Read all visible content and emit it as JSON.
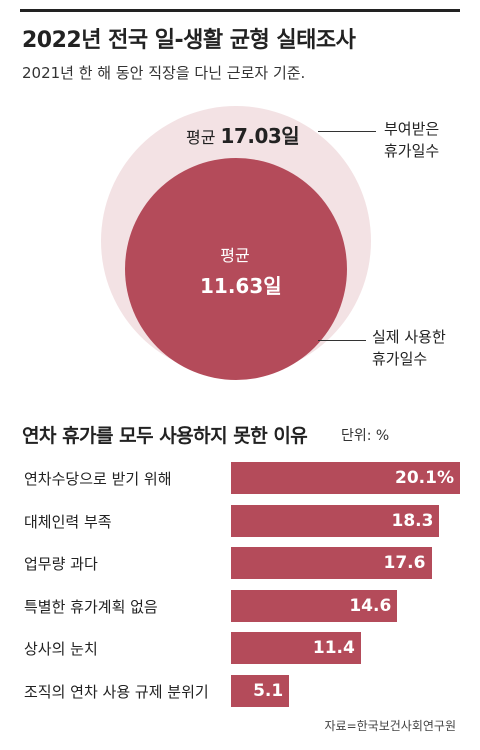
{
  "header": {
    "title": "2022년 전국 일-생활 균형 실태조사",
    "subtitle": "2021년 한 해 동안 직장을 다닌 근로자 기준."
  },
  "circle_chart": {
    "outer": {
      "label": "평균",
      "value": 17.03,
      "value_text": "17.03일",
      "annotation": [
        "부여받은",
        "휴가일수"
      ],
      "color": "#f3e2e4"
    },
    "inner": {
      "label": "평균",
      "value": 11.63,
      "value_text": "11.63일",
      "annotation": [
        "실제 사용한",
        "휴가일수"
      ],
      "color": "#b44b5a"
    }
  },
  "bar_section": {
    "title": "연차 휴가를 모두 사용하지 못한 이유",
    "unit": "단위: %"
  },
  "chart_data": {
    "type": "bar",
    "orientation": "horizontal",
    "title": "연차 휴가를 모두 사용하지 못한 이유",
    "unit": "%",
    "categories": [
      "연차수당으로 받기 위해",
      "대체인력 부족",
      "업무량 과다",
      "특별한 휴가계획 없음",
      "상사의 눈치",
      "조직의 연차 사용 규제 분위기"
    ],
    "values": [
      20.1,
      18.3,
      17.6,
      14.6,
      11.4,
      5.1
    ],
    "value_labels": [
      "20.1%",
      "18.3",
      "17.6",
      "14.6",
      "11.4",
      "5.1"
    ],
    "xlim": [
      0,
      20.1
    ],
    "color": "#b44b5a"
  },
  "footer": {
    "source": "자료=한국보건사회연구원"
  }
}
